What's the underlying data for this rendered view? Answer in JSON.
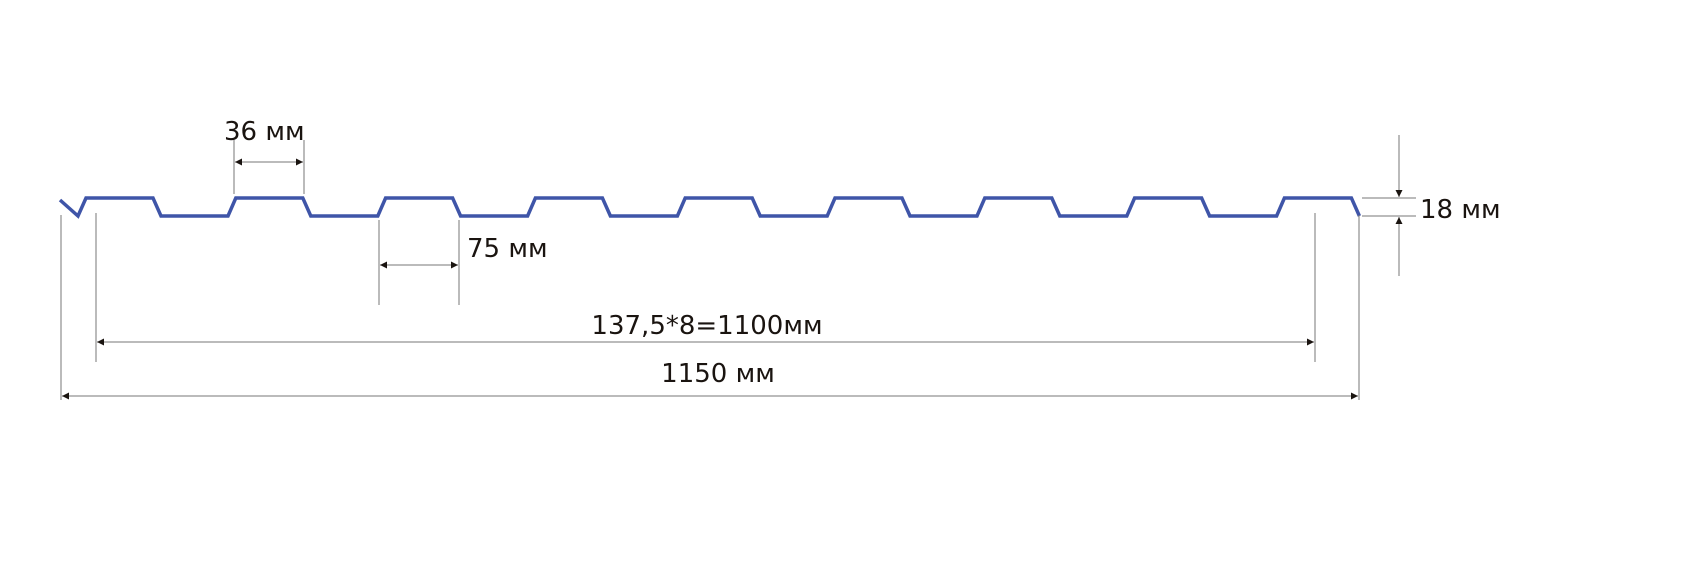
{
  "diagram": {
    "profile_color": "#3f55a8",
    "dimension_color": "#555555",
    "text_color": "#1a1410",
    "rib_count": 9,
    "labels": {
      "rib_top_width": "36 мм",
      "rib_bottom_gap": "75 мм",
      "height": "18 мм",
      "working_width": "137,5*8=1100мм",
      "total_width": "1150 мм"
    }
  }
}
